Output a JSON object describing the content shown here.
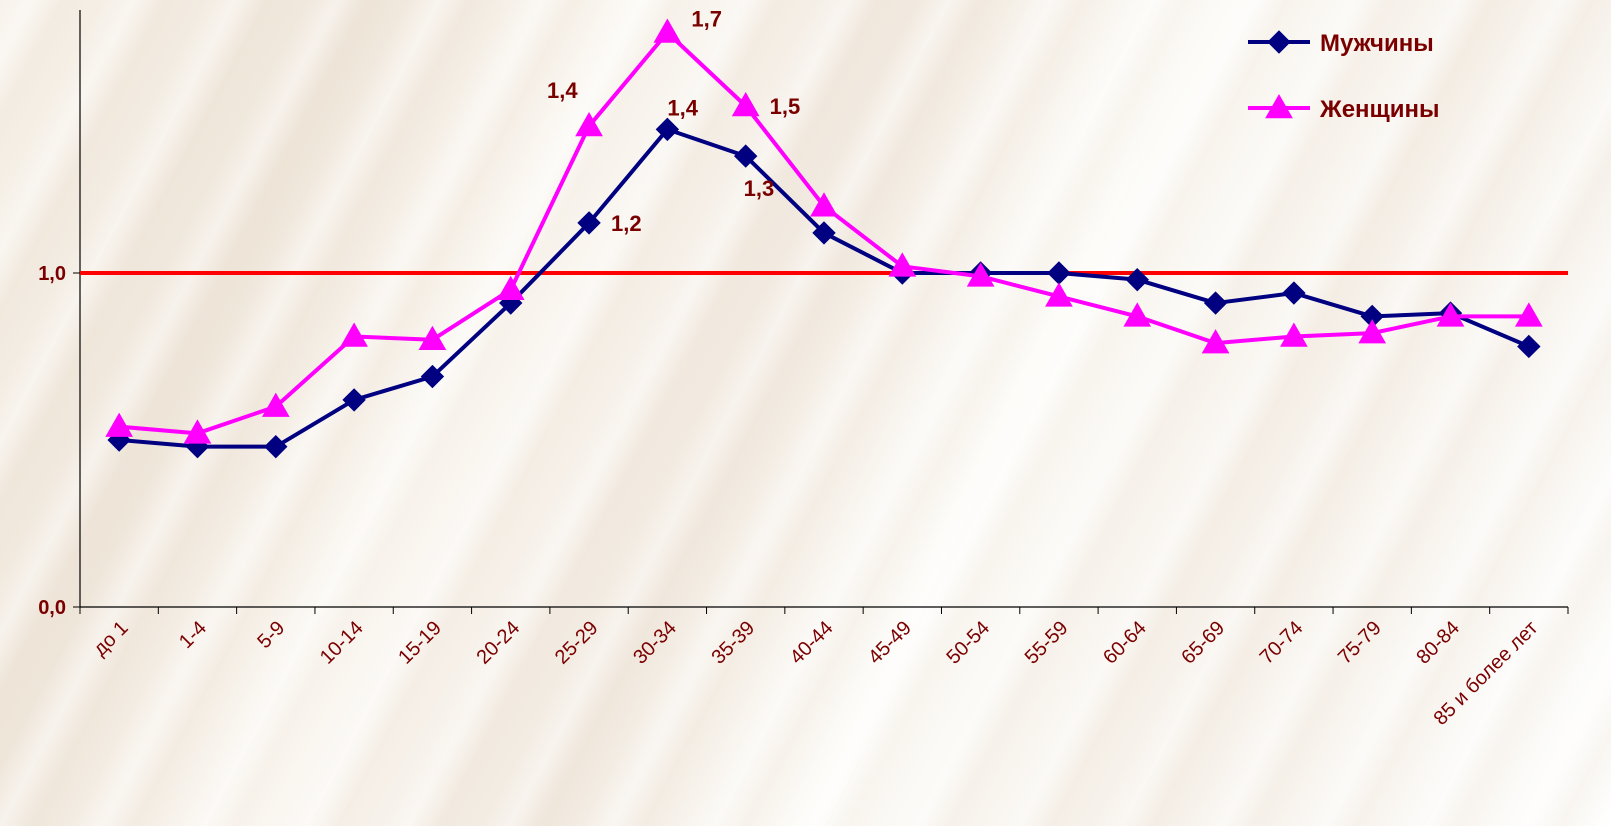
{
  "chart_data": {
    "type": "line",
    "categories": [
      "до 1",
      "1-4",
      "5-9",
      "10-14",
      "15-19",
      "20-24",
      "25-29",
      "30-34",
      "35-39",
      "40-44",
      "45-49",
      "50-54",
      "55-59",
      "60-64",
      "65-69",
      "70-74",
      "75-79",
      "80-84",
      "85 и более лет"
    ],
    "ylim": [
      0,
      1.8
    ],
    "yticks": [
      {
        "value": 0,
        "label": "0,0"
      },
      {
        "value": 1,
        "label": "1,0"
      }
    ],
    "reference_line": {
      "value": 1.0,
      "color": "#ff0000"
    },
    "legend_position": "top-right",
    "series": [
      {
        "name": "Мужчины",
        "color": "#000080",
        "marker": "diamond",
        "values": [
          0.5,
          0.48,
          0.48,
          0.62,
          0.69,
          0.91,
          1.15,
          1.43,
          1.35,
          1.12,
          1.0,
          1.0,
          1.0,
          0.98,
          0.91,
          0.94,
          0.87,
          0.88,
          0.78
        ]
      },
      {
        "name": "Женщины",
        "color": "#ff00ff",
        "marker": "triangle",
        "values": [
          0.54,
          0.52,
          0.6,
          0.81,
          0.8,
          0.95,
          1.44,
          1.72,
          1.5,
          1.2,
          1.02,
          0.99,
          0.93,
          0.87,
          0.79,
          0.81,
          0.82,
          0.87,
          0.87
        ]
      }
    ],
    "data_labels": [
      {
        "series": 0,
        "index": 6,
        "text": "1,2"
      },
      {
        "series": 0,
        "index": 7,
        "text": "1,4"
      },
      {
        "series": 0,
        "index": 8,
        "text": "1,3"
      },
      {
        "series": 1,
        "index": 6,
        "text": "1,4"
      },
      {
        "series": 1,
        "index": 7,
        "text": "1,7"
      },
      {
        "series": 1,
        "index": 8,
        "text": "1,5"
      }
    ]
  }
}
